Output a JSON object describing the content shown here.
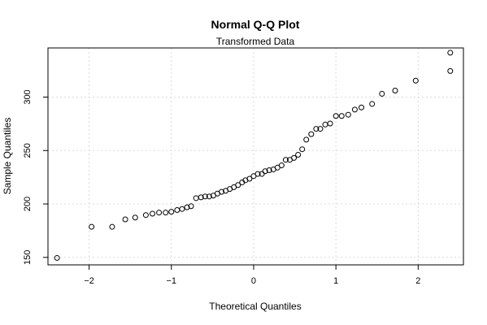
{
  "chart_data": {
    "type": "scatter",
    "title": "Normal Q-Q Plot",
    "subtitle": "Transformed Data",
    "xlabel": "Theoretical Quantiles",
    "ylabel": "Sample Quantiles",
    "xlim": [
      -2.5,
      2.55
    ],
    "ylim": [
      143,
      346
    ],
    "x_ticks": [
      -2,
      -1,
      0,
      1,
      2
    ],
    "x_tick_labels": [
      "−2",
      "−1",
      "0",
      "1",
      "2"
    ],
    "y_ticks": [
      150,
      200,
      250,
      300
    ],
    "y_tick_labels": [
      "150",
      "200",
      "250",
      "300"
    ],
    "grid": true,
    "marker": "open-circle",
    "points": [
      {
        "x": -2.39,
        "y": 149.5
      },
      {
        "x": -1.97,
        "y": 178.6
      },
      {
        "x": -1.72,
        "y": 178.6
      },
      {
        "x": -1.56,
        "y": 185.6
      },
      {
        "x": -1.44,
        "y": 187.3
      },
      {
        "x": -1.31,
        "y": 189.6
      },
      {
        "x": -1.23,
        "y": 190.9
      },
      {
        "x": -1.15,
        "y": 191.9
      },
      {
        "x": -1.07,
        "y": 191.9
      },
      {
        "x": -1.0,
        "y": 192.7
      },
      {
        "x": -0.93,
        "y": 194.3
      },
      {
        "x": -0.87,
        "y": 195.3
      },
      {
        "x": -0.81,
        "y": 196.9
      },
      {
        "x": -0.76,
        "y": 197.9
      },
      {
        "x": -0.7,
        "y": 205.4
      },
      {
        "x": -0.64,
        "y": 206.2
      },
      {
        "x": -0.59,
        "y": 207.0
      },
      {
        "x": -0.54,
        "y": 207.0
      },
      {
        "x": -0.49,
        "y": 207.8
      },
      {
        "x": -0.44,
        "y": 209.7
      },
      {
        "x": -0.39,
        "y": 211.3
      },
      {
        "x": -0.34,
        "y": 212.3
      },
      {
        "x": -0.29,
        "y": 214.0
      },
      {
        "x": -0.24,
        "y": 215.7
      },
      {
        "x": -0.19,
        "y": 217.7
      },
      {
        "x": -0.14,
        "y": 220.2
      },
      {
        "x": -0.1,
        "y": 222.2
      },
      {
        "x": -0.05,
        "y": 223.6
      },
      {
        "x": 0.0,
        "y": 226.1
      },
      {
        "x": 0.05,
        "y": 228.1
      },
      {
        "x": 0.1,
        "y": 228.1
      },
      {
        "x": 0.14,
        "y": 230.6
      },
      {
        "x": 0.19,
        "y": 231.6
      },
      {
        "x": 0.24,
        "y": 232.3
      },
      {
        "x": 0.29,
        "y": 234.0
      },
      {
        "x": 0.34,
        "y": 236.1
      },
      {
        "x": 0.39,
        "y": 241.3
      },
      {
        "x": 0.44,
        "y": 241.3
      },
      {
        "x": 0.49,
        "y": 243.1
      },
      {
        "x": 0.54,
        "y": 246.0
      },
      {
        "x": 0.59,
        "y": 251.2
      },
      {
        "x": 0.64,
        "y": 260.2
      },
      {
        "x": 0.7,
        "y": 265.3
      },
      {
        "x": 0.76,
        "y": 270.3
      },
      {
        "x": 0.81,
        "y": 270.3
      },
      {
        "x": 0.87,
        "y": 274.3
      },
      {
        "x": 0.93,
        "y": 275.3
      },
      {
        "x": 1.0,
        "y": 282.3
      },
      {
        "x": 1.07,
        "y": 282.3
      },
      {
        "x": 1.15,
        "y": 283.5
      },
      {
        "x": 1.23,
        "y": 288.3
      },
      {
        "x": 1.31,
        "y": 290.3
      },
      {
        "x": 1.44,
        "y": 293.6
      },
      {
        "x": 1.56,
        "y": 303.1
      },
      {
        "x": 1.72,
        "y": 306.1
      },
      {
        "x": 1.97,
        "y": 315.4
      },
      {
        "x": 2.39,
        "y": 324.4
      },
      {
        "x": 2.39,
        "y": 341.5
      }
    ]
  }
}
